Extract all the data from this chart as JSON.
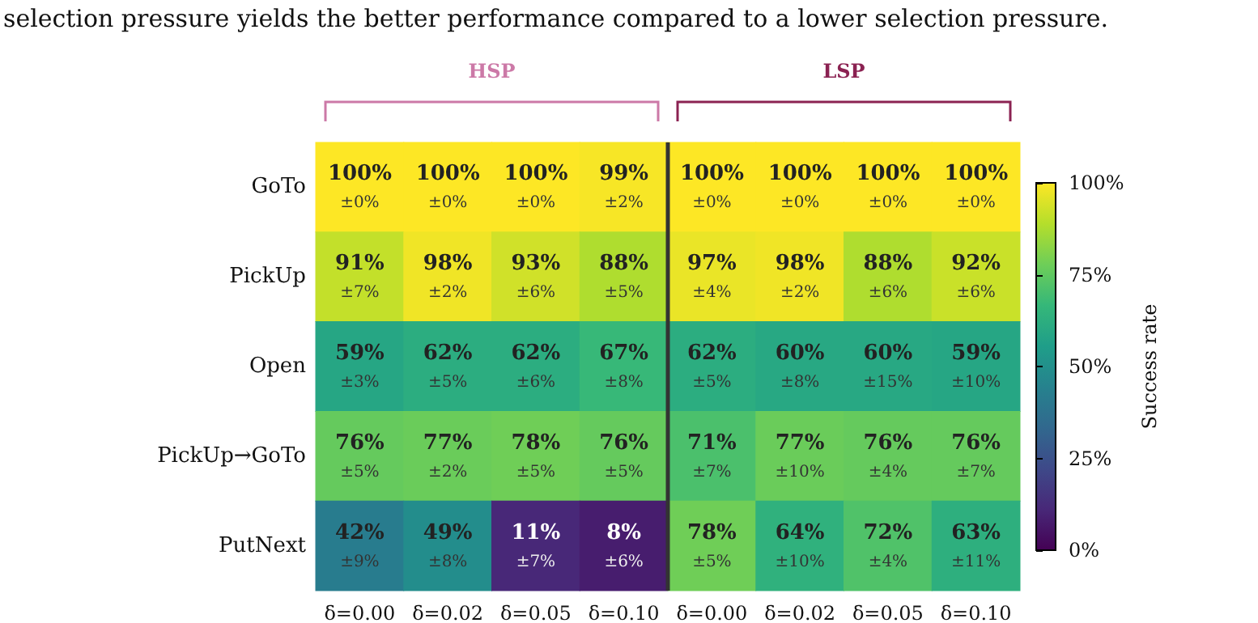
{
  "chart_data": {
    "type": "heatmap",
    "annotations": [
      "selection pressure yields the better performance compared to a lower selection pressure.",
      "HSP",
      "LSP"
    ],
    "categories": [
      "δ=0.00",
      "δ=0.02",
      "δ=0.05",
      "δ=0.10",
      "δ=0.00",
      "δ=0.02",
      "δ=0.05",
      "δ=0.10"
    ],
    "y_categories": [
      "GoTo",
      "PickUp",
      "Open",
      "PickUp→GoTo",
      "PutNext"
    ],
    "cells": [
      [
        100,
        100,
        100,
        99,
        100,
        100,
        100,
        100
      ],
      [
        91,
        98,
        93,
        88,
        97,
        98,
        88,
        92
      ],
      [
        59,
        62,
        62,
        67,
        62,
        60,
        60,
        59
      ],
      [
        76,
        77,
        78,
        76,
        71,
        77,
        76,
        76
      ],
      [
        42,
        49,
        11,
        8,
        78,
        64,
        72,
        63
      ]
    ],
    "cell_labels": [
      [
        "100%\n±0%",
        "100%\n±0%",
        "100%\n±0%",
        "99%\n±2%",
        "100%\n±0%",
        "100%\n±0%",
        "100%\n±0%",
        "100%\n±0%"
      ],
      [
        "91%\n±7%",
        "98%\n±2%",
        "93%\n±6%",
        "88%\n±5%",
        "97%\n±4%",
        "98%\n±2%",
        "88%\n±6%",
        "92%\n±6%"
      ],
      [
        "59%\n±3%",
        "62%\n±5%",
        "62%\n±6%",
        "67%\n±8%",
        "62%\n±5%",
        "60%\n±8%",
        "60%\n±15%",
        "59%\n±10%"
      ],
      [
        "76%\n±5%",
        "77%\n±2%",
        "78%\n±5%",
        "76%\n±5%",
        "71%\n±7%",
        "77%\n±10%",
        "76%\n±4%",
        "76%\n±7%"
      ],
      [
        "42%\n±9%",
        "49%\n±8%",
        "11%\n±7%",
        "8%\n±6%",
        "78%\n±5%",
        "64%\n±10%",
        "72%\n±4%",
        "63%\n±11%"
      ]
    ],
    "clabel": "Success rate",
    "clim": [
      0,
      100
    ],
    "cticks": [
      {
        "value": 0,
        "label": "0%"
      },
      {
        "value": 25,
        "label": "25%"
      },
      {
        "value": 50,
        "label": "50%"
      },
      {
        "value": 75,
        "label": "75%"
      },
      {
        "value": 100,
        "label": "100%"
      }
    ]
  }
}
